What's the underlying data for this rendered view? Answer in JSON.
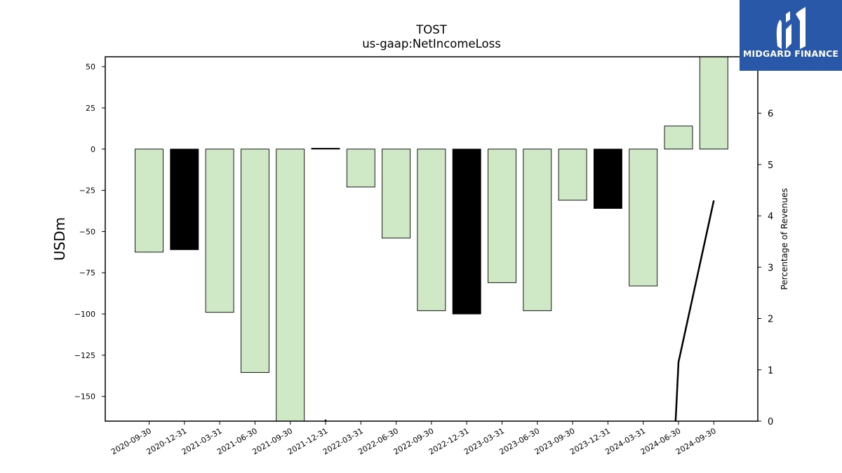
{
  "brand": {
    "name": "MIDGARD FINANCE",
    "bg_color": "#2a58a8"
  },
  "chart_data": {
    "type": "bar",
    "title": "TOST",
    "subtitle": "us-gaap:NetIncomeLoss",
    "ylabel": "USDm",
    "y2label": "Percentage of Revenues",
    "ylim": [
      -165,
      56
    ],
    "y2lim": [
      0,
      7.1
    ],
    "yticks": [
      50,
      25,
      0,
      -25,
      -50,
      -75,
      -100,
      -125,
      -150
    ],
    "y2ticks": [
      0,
      1,
      2,
      3,
      4,
      5,
      6
    ],
    "categories": [
      "2020-09-30",
      "2020-12-31",
      "2021-03-31",
      "2021-06-30",
      "2021-09-30",
      "2021-12-31",
      "2022-03-31",
      "2022-06-30",
      "2022-09-30",
      "2022-12-31",
      "2023-03-31",
      "2023-06-30",
      "2023-09-30",
      "2023-12-31",
      "2024-03-31",
      "2024-06-30",
      "2024-09-30"
    ],
    "values": [
      -62.5,
      -61,
      -99,
      -135.5,
      -165,
      0.5,
      -23,
      -54,
      -98,
      -100,
      -81,
      -98,
      -31,
      -36,
      -83,
      14,
      56
    ],
    "bar_colors": [
      "#cfe9c6",
      "#000000",
      "#cfe9c6",
      "#cfe9c6",
      "#cfe9c6",
      "#000000",
      "#cfe9c6",
      "#cfe9c6",
      "#cfe9c6",
      "#000000",
      "#cfe9c6",
      "#cfe9c6",
      "#cfe9c6",
      "#000000",
      "#cfe9c6",
      "#cfe9c6",
      "#cfe9c6"
    ],
    "line_series": {
      "axis": "right",
      "segments": [
        {
          "x": [
            "2021-12-31",
            "2021-12-31"
          ],
          "y": [
            0.0,
            0.03
          ]
        },
        {
          "x": [
            "2024-03-31",
            "2024-06-30",
            "2024-09-30"
          ],
          "y": [
            -0.6,
            1.15,
            4.3
          ]
        }
      ]
    },
    "grid": false,
    "legend": "none"
  }
}
